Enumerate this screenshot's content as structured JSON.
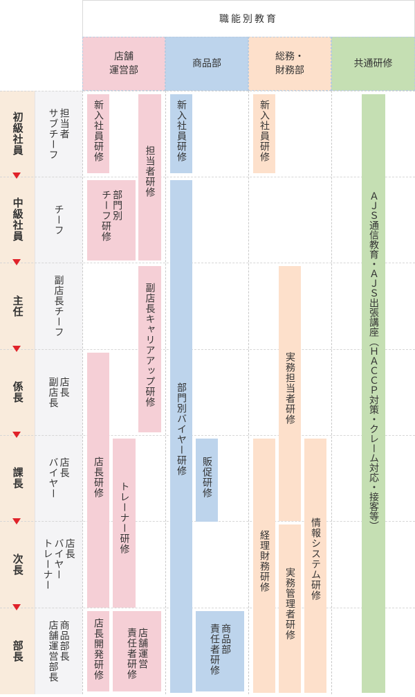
{
  "header": {
    "title": "職能別教育",
    "columns": {
      "store": "店舗\n運営部",
      "merch": "商品部",
      "admin": "総務・\n財務部",
      "common": "共通研修"
    }
  },
  "ranks": {
    "shokyu": "初級社員",
    "chukyu": "中級社員",
    "shunin": "主任",
    "kakaricho": "係長",
    "kacho": "課長",
    "jicho": "次長",
    "bucho": "部長"
  },
  "positions": {
    "shokyu": "担当者\nサブチーフ",
    "chukyu": "チーフ",
    "shunin": "副店長チーフ",
    "kakaricho": "店長\n副店長",
    "kacho": "店長\nバイヤー",
    "jicho": "店長\nバイヤー\nトレーナー",
    "bucho": "商品部長\n店舗運営部長"
  },
  "programs": {
    "store_new": "新入社員研修",
    "store_tanto": "担当者研修",
    "store_dept_chief": "部門別\nチーフ研修",
    "store_vice": "副店長キャリアアップ研修",
    "store_manager": "店長研修",
    "store_trainer": "トレーナー研修",
    "store_dev": "店長開発研修",
    "store_resp": "店舗運営\n責任者研修",
    "merch_new": "新入社員研修",
    "merch_buyer": "部門別バイヤー研修",
    "merch_promo": "販促研修",
    "merch_resp": "商品部\n責任者研修",
    "admin_new": "新入社員研修",
    "admin_practical": "実務担当者研修",
    "admin_accounting": "経理財務研修",
    "admin_mgmt": "実務管理者研修",
    "admin_info": "情報システム研修",
    "common_ajs": "ＡＪＳ通信教育・ＡＪＳ出張講座（ＨＡＣＣＰ対策・クレーム対応・接客等）"
  }
}
